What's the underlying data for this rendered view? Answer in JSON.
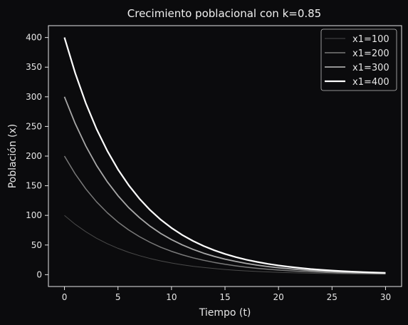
{
  "chart_data": {
    "type": "line",
    "title": "Crecimiento poblacional con k=0.85",
    "xlabel": "Tiempo (t)",
    "ylabel": "Población (x)",
    "xlim": [
      -1.5,
      31.5
    ],
    "ylim": [
      -20,
      420
    ],
    "xticks": [
      0,
      5,
      10,
      15,
      20,
      25,
      30
    ],
    "yticks": [
      0,
      50,
      100,
      150,
      200,
      250,
      300,
      350,
      400
    ],
    "grid": false,
    "legend_position": "top-right",
    "x": [
      0,
      1,
      2,
      3,
      4,
      5,
      6,
      7,
      8,
      9,
      10,
      11,
      12,
      13,
      14,
      15,
      16,
      17,
      18,
      19,
      20,
      21,
      22,
      23,
      24,
      25,
      26,
      27,
      28,
      29,
      30
    ],
    "series": [
      {
        "name": "x1=100",
        "color": "#4a4a4a",
        "values": [
          100,
          85,
          72.3,
          61.4,
          52.2,
          44.4,
          37.7,
          32.1,
          27.2,
          23.2,
          19.7,
          16.7,
          14.2,
          12.1,
          10.3,
          8.7,
          7.4,
          6.3,
          5.4,
          4.6,
          3.9,
          3.3,
          2.8,
          2.4,
          2.0,
          1.7,
          1.5,
          1.2,
          1.1,
          0.9,
          0.8
        ]
      },
      {
        "name": "x1=200",
        "color": "#7a7a7a",
        "values": [
          200,
          170,
          144.5,
          122.8,
          104.4,
          88.7,
          75.4,
          64.1,
          54.5,
          46.3,
          39.4,
          33.5,
          28.4,
          24.2,
          20.6,
          17.5,
          14.9,
          12.6,
          10.7,
          9.1,
          7.8,
          6.6,
          5.6,
          4.8,
          4.1,
          3.5,
          2.9,
          2.5,
          2.1,
          1.8,
          1.5
        ]
      },
      {
        "name": "x1=300",
        "color": "#a8a8a8",
        "values": [
          300,
          255,
          216.8,
          184.2,
          156.6,
          133.1,
          113.1,
          96.2,
          81.7,
          69.5,
          59.1,
          50.2,
          42.7,
          36.3,
          30.8,
          26.2,
          22.3,
          18.9,
          16.1,
          13.7,
          11.6,
          9.9,
          8.4,
          7.1,
          6.1,
          5.2,
          4.4,
          3.7,
          3.2,
          2.7,
          2.3
        ]
      },
      {
        "name": "x1=400",
        "color": "#ffffff",
        "values": [
          400,
          340,
          289,
          245.7,
          208.8,
          177.5,
          150.9,
          128.2,
          109,
          92.6,
          78.8,
          66.9,
          56.9,
          48.4,
          41.1,
          34.9,
          29.7,
          25.2,
          21.5,
          18.2,
          15.5,
          13.2,
          11.2,
          9.5,
          8.1,
          6.9,
          5.9,
          5.0,
          4.2,
          3.6,
          3.1
        ]
      }
    ]
  }
}
